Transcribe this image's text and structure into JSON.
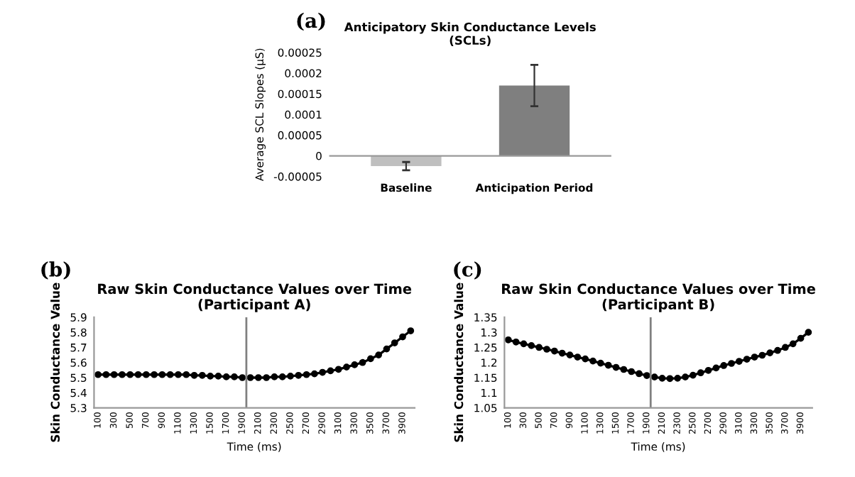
{
  "chart_data": [
    {
      "type": "bar",
      "title": "Anticipatory Skin Conductance Levels\n(SCLs)",
      "ylabel": "Average SCL Slopes (µS)",
      "annotations": [
        "(a)"
      ],
      "categories": [
        "Baseline",
        "Anticipation Period"
      ],
      "values": [
        -2.5e-05,
        0.00017
      ],
      "colors": [
        "#bfbfbf",
        "#7f7f7f"
      ],
      "errors": [
        1e-05,
        5e-05
      ],
      "ylim": [
        -5e-05,
        0.00025
      ],
      "yticks": [
        {
          "value": -5e-05,
          "label": "-0.00005"
        },
        0,
        {
          "value": 5e-05,
          "label": "0.00005"
        },
        {
          "value": 0.0001,
          "label": "0.0001"
        },
        {
          "value": 0.00015,
          "label": "0.00015"
        },
        {
          "value": 0.0002,
          "label": "0.0002"
        },
        {
          "value": 0.00025,
          "label": "0.00025"
        }
      ],
      "grid": false,
      "legend": false
    },
    {
      "type": "line",
      "title": "Raw Skin Conductance Values over Time\n(Participant A)",
      "xlabel": "Time (ms)",
      "ylabel": "Skin Conductance Value",
      "annotations": [
        "(b)"
      ],
      "x": [
        100,
        200,
        300,
        400,
        500,
        600,
        700,
        800,
        900,
        1000,
        1100,
        1200,
        1300,
        1400,
        1500,
        1600,
        1700,
        1800,
        1900,
        2000,
        2100,
        2200,
        2300,
        2400,
        2500,
        2600,
        2700,
        2800,
        2900,
        3000,
        3100,
        3200,
        3300,
        3400,
        3500,
        3600,
        3700,
        3800,
        3900,
        4000
      ],
      "series": [
        {
          "color": "#000000",
          "values": [
            5.52,
            5.52,
            5.52,
            5.52,
            5.52,
            5.52,
            5.52,
            5.52,
            5.52,
            5.52,
            5.52,
            5.52,
            5.515,
            5.515,
            5.51,
            5.51,
            5.505,
            5.505,
            5.5,
            5.5,
            5.5,
            5.5,
            5.505,
            5.505,
            5.51,
            5.515,
            5.52,
            5.525,
            5.535,
            5.545,
            5.555,
            5.57,
            5.585,
            5.6,
            5.625,
            5.65,
            5.69,
            5.73,
            5.77,
            5.81
          ]
        }
      ],
      "xlim": [
        50,
        4050
      ],
      "xticks": [
        100,
        300,
        500,
        700,
        900,
        1100,
        1300,
        1500,
        1700,
        1900,
        2100,
        2300,
        2500,
        2700,
        2900,
        3100,
        3300,
        3500,
        3700,
        3900
      ],
      "ylim": [
        5.3,
        5.9
      ],
      "yticks": [
        5.3,
        5.4,
        5.5,
        5.6,
        5.7,
        5.8,
        5.9
      ],
      "ref_lines": [
        {
          "axis": "x",
          "value": 1950,
          "color": "#808080"
        }
      ],
      "marker": "circle",
      "line_style": "solid",
      "grid": false,
      "legend": false
    },
    {
      "type": "line",
      "title": "Raw Skin Conductance Values over Time\n(Participant B)",
      "xlabel": "Time (ms)",
      "ylabel": "Skin Conductance Value",
      "annotations": [
        "(c)"
      ],
      "x": [
        100,
        200,
        300,
        400,
        500,
        600,
        700,
        800,
        900,
        1000,
        1100,
        1200,
        1300,
        1400,
        1500,
        1600,
        1700,
        1800,
        1900,
        2000,
        2100,
        2200,
        2300,
        2400,
        2500,
        2600,
        2700,
        2800,
        2900,
        3000,
        3100,
        3200,
        3300,
        3400,
        3500,
        3600,
        3700,
        3800,
        3900,
        4000
      ],
      "series": [
        {
          "color": "#000000",
          "values": [
            1.275,
            1.268,
            1.262,
            1.256,
            1.25,
            1.244,
            1.238,
            1.231,
            1.225,
            1.218,
            1.212,
            1.205,
            1.198,
            1.191,
            1.184,
            1.177,
            1.17,
            1.163,
            1.157,
            1.152,
            1.148,
            1.147,
            1.148,
            1.152,
            1.158,
            1.166,
            1.174,
            1.182,
            1.19,
            1.197,
            1.204,
            1.211,
            1.218,
            1.224,
            1.232,
            1.24,
            1.25,
            1.262,
            1.28,
            1.3
          ]
        }
      ],
      "xlim": [
        50,
        4050
      ],
      "xticks": [
        100,
        300,
        500,
        700,
        900,
        1100,
        1300,
        1500,
        1700,
        1900,
        2100,
        2300,
        2500,
        2700,
        2900,
        3100,
        3300,
        3500,
        3700,
        3900
      ],
      "ylim": [
        1.05,
        1.35
      ],
      "yticks": [
        1.05,
        1.1,
        1.15,
        1.2,
        1.25,
        1.3,
        1.35
      ],
      "ref_lines": [
        {
          "axis": "x",
          "value": 1950,
          "color": "#808080"
        }
      ],
      "marker": "circle",
      "line_style": "solid",
      "grid": false,
      "legend": false
    }
  ]
}
